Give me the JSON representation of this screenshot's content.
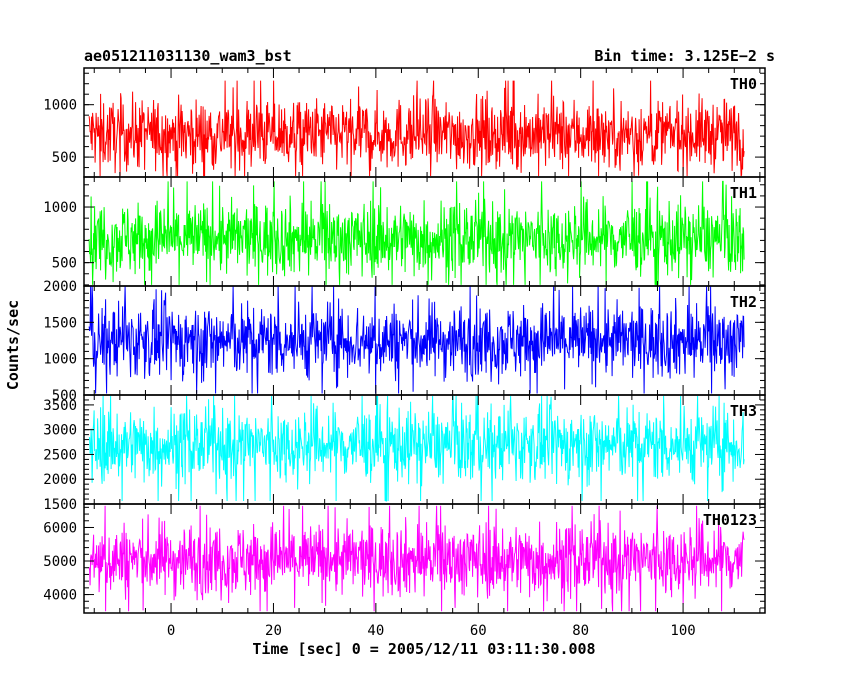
{
  "header": {
    "title": "ae051211031130_wam3_bst",
    "bin_time": "Bin time: 3.125E−2 s"
  },
  "axes": {
    "xlabel": "Time [sec] 0 = 2005/12/11 03:11:30.008",
    "ylabel": "Counts/sec"
  },
  "chart_data": {
    "type": "line",
    "title": "ae051211031130_wam3_bst",
    "xlabel": "Time [sec] 0 = 2005/12/11 03:11:30.008",
    "ylabel": "Counts/sec",
    "xlim": [
      -17,
      116
    ],
    "x_range": [
      -16,
      112
    ],
    "x_ticks": [
      0,
      20,
      40,
      60,
      80,
      100
    ],
    "x_tick_labels": [
      "0",
      "20",
      "40",
      "60",
      "80",
      "100"
    ],
    "bin_time": 0.03125,
    "panels": [
      {
        "name": "TH0",
        "color": "#ff0000",
        "ylim": [
          310,
          1350
        ],
        "y_ticks": [
          500,
          1000
        ],
        "y_tick_labels": [
          "500",
          "1000"
        ],
        "y_minor_step": 100,
        "mean": 720,
        "spread": 170,
        "min": 320,
        "max": 1340
      },
      {
        "name": "TH1",
        "color": "#00ff00",
        "ylim": [
          290,
          1270
        ],
        "y_ticks": [
          500,
          1000
        ],
        "y_tick_labels": [
          "500",
          "1000"
        ],
        "y_minor_step": 100,
        "mean": 720,
        "spread": 170,
        "min": 300,
        "max": 1260
      },
      {
        "name": "TH2",
        "color": "#0000ff",
        "ylim": [
          500,
          2000
        ],
        "y_ticks": [
          500,
          1000,
          1500,
          2000
        ],
        "y_tick_labels": [
          "500",
          "1000",
          "1500",
          "2000"
        ],
        "y_minor_step": 100,
        "mean": 1250,
        "spread": 260,
        "min": 520,
        "max": 2000
      },
      {
        "name": "TH3",
        "color": "#00ffff",
        "ylim": [
          1500,
          3700
        ],
        "y_ticks": [
          1500,
          2000,
          2500,
          3000,
          3500
        ],
        "y_tick_labels": [
          "1500",
          "2000",
          "2500",
          "3000",
          "3500"
        ],
        "y_minor_step": 100,
        "mean": 2700,
        "spread": 380,
        "min": 1560,
        "max": 3680
      },
      {
        "name": "TH0123",
        "color": "#ff00ff",
        "ylim": [
          3450,
          6700
        ],
        "y_ticks": [
          4000,
          5000,
          6000
        ],
        "y_tick_labels": [
          "4000",
          "5000",
          "6000"
        ],
        "y_minor_step": 200,
        "mean": 5050,
        "spread": 560,
        "min": 3500,
        "max": 6650
      }
    ]
  }
}
